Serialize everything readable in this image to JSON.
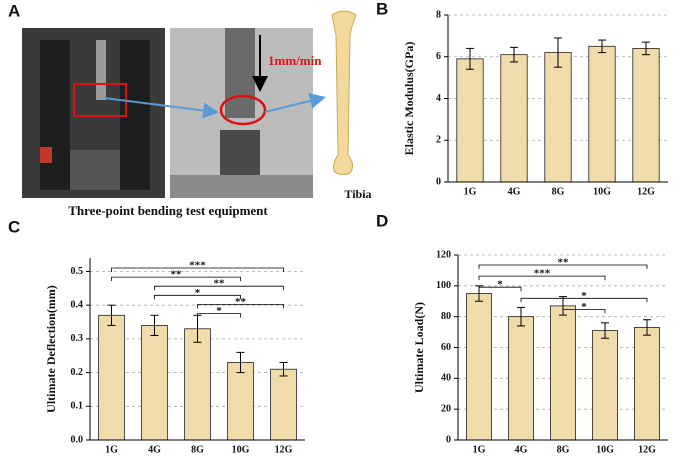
{
  "panel_a": {
    "panel": "A",
    "caption": "Three-point bending test equipment",
    "speed": "1mm/min",
    "bone": "Tibia"
  },
  "chart_data": [
    {
      "type": "bar",
      "panel": "B",
      "ylabel": "Elastic Modulus(GPa)",
      "categories": [
        "1G",
        "4G",
        "8G",
        "10G",
        "12G"
      ],
      "values": [
        5.9,
        6.1,
        6.2,
        6.5,
        6.4
      ],
      "errors": [
        0.5,
        0.35,
        0.7,
        0.3,
        0.3
      ],
      "color": "#f0dbab",
      "ylim": [
        0,
        8
      ],
      "yticks": [
        0,
        2,
        4,
        6,
        8
      ],
      "grid": true,
      "comparisons": []
    },
    {
      "type": "bar",
      "panel": "C",
      "ylabel": "Ultimate Deflection(mm)",
      "categories": [
        "1G",
        "4G",
        "8G",
        "10G",
        "12G"
      ],
      "values": [
        0.37,
        0.34,
        0.33,
        0.23,
        0.21
      ],
      "errors": [
        0.03,
        0.03,
        0.04,
        0.03,
        0.02
      ],
      "color": "#f0dbab",
      "ylim": [
        0,
        0.54
      ],
      "yticks": [
        {
          "value": 0,
          "label": "0.0"
        },
        0.1,
        0.2,
        0.3,
        0.4,
        0.5
      ],
      "grid": true,
      "comparisons": [
        {
          "from": 0,
          "to": 4,
          "label": "***"
        },
        {
          "from": 0,
          "to": 3,
          "label": "**"
        },
        {
          "from": 1,
          "to": 4,
          "label": "**"
        },
        {
          "from": 1,
          "to": 3,
          "label": "*"
        },
        {
          "from": 2,
          "to": 4,
          "label": "**"
        },
        {
          "from": 2,
          "to": 3,
          "label": "*"
        }
      ]
    },
    {
      "type": "bar",
      "panel": "D",
      "ylabel": "Ultimate Load(N)",
      "categories": [
        "1G",
        "4G",
        "8G",
        "10G",
        "12G"
      ],
      "values": [
        95,
        80,
        87,
        71,
        73
      ],
      "errors": [
        5,
        6,
        6,
        5,
        5
      ],
      "color": "#f0dbab",
      "ylim": [
        0,
        120
      ],
      "yticks": [
        0,
        20,
        40,
        60,
        80,
        100,
        120
      ],
      "grid": true,
      "comparisons": [
        {
          "from": 0,
          "to": 4,
          "label": "**"
        },
        {
          "from": 0,
          "to": 3,
          "label": "***"
        },
        {
          "from": 0,
          "to": 1,
          "label": "*"
        },
        {
          "from": 1,
          "to": 4,
          "label": "*"
        },
        {
          "from": 2,
          "to": 3,
          "label": "*"
        }
      ]
    }
  ]
}
